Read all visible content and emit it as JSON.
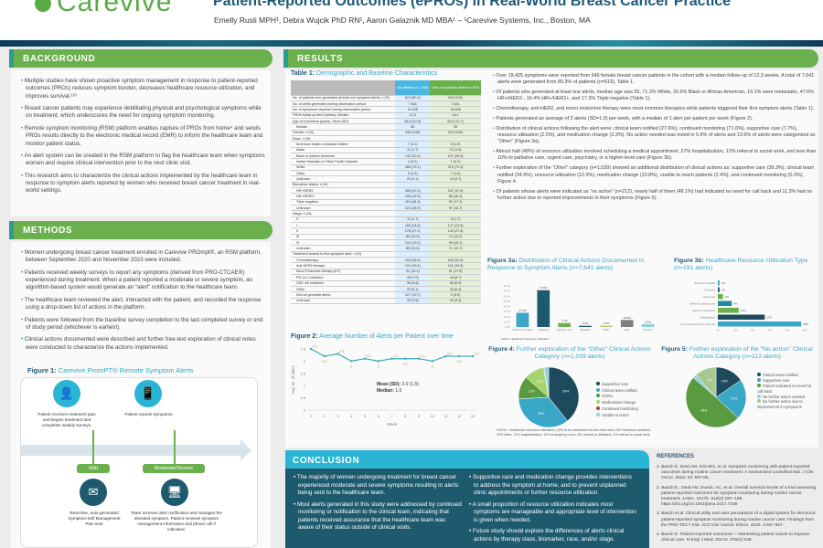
{
  "header": {
    "logo": "Carevive",
    "title": "Patient-Reported Outcomes (ePROs) in Real-World Breast Cancer Practice",
    "authors": "Emelly Rusli MPH¹, Debra Wujcik PhD RN¹, Aaron Galaznik MD MBA¹  –  ¹Carevive Systems, Inc., Boston, MA"
  },
  "background": {
    "heading": "BACKGROUND",
    "items": [
      "Multiple studies have shown proactive symptom management in response to patient-reported outcomes (PROs) reduces symptom burden, decreases healthcare resource utilization, and improves survival.¹²³",
      "Breast cancer patients may experience debilitating physical and psychological symptoms while on treatment, which underscores the need for ongoing symptom monitoring.",
      "Remote symptom monitoring (RSM) platform enables capture of PROs from home⁴ and sends PROs results directly to the electronic medical record (EMR) to inform the healthcare team and monitor patient status.",
      "An alert system can be created in the RSM platform to flag the healthcare team when symptoms worsen and require clinical intervention prior to the next clinic visit.",
      "This research aims to characterize the clinical actions implemented by the healthcare team in response to symptom alerts reported by women who received breast cancer treatment in real-world settings."
    ]
  },
  "methods": {
    "heading": "METHODS",
    "items": [
      "Women undergoing breast cancer treatment enrolled in Carevive PROmpt®, an RSM platform, between September 2020 and November 2023 were included.",
      "Patients received weekly surveys to report any symptoms (derived from PRO-CTCAE®) experienced during treatment. When a patient reported a moderate or severe symptom, an algorithm-based system would generate an “alert” notification to the healthcare team.",
      "The healthcare team reviewed the alert, interacted with the patient, and recorded the response using a drop-down list of actions in the platform.",
      "Patients were followed from the baseline survey completion to the last completed survey or end of study period (whichever is earliest).",
      "Clinical actions documented were described and further free-text exploration of clinical notes were conducted to characterize the actions implemented."
    ]
  },
  "figure1": {
    "label": "Figure 1:",
    "title": "Carevive PromPT® Remote Symptom Alerts",
    "step1": "Patient receives treatment plan and begins treatment and completes weekly surveys.",
    "step2": "Patient reports symptoms.",
    "mild": "Mild",
    "modsev": "Moderate/Severe",
    "mild_out": "Real-time, auto-generated Symptom-Self Management Plan sent",
    "modsev_out": "Team receives alert notification and manages the elevated symptom. Patient receives symptom management information and phone call if indicated."
  },
  "results": {
    "heading": "RESULTS",
    "items": [
      "Over 19,425 symptoms were reported from 646 female breast cancer patients in the cohort with a median follow-up of 12.3 weeks. A total of 7,641 alerts were generated from 80.3% of patients (n=519), Table 1.",
      "Of patients who generated at least one alerts, median age was 55, 71.3% White, 20.6% Black or African American, 19.1% were metastatic, 47.6% HR+/HER2-, 16.4% HR+/HER2+, and 17.3% Triple negative (Table 1).",
      "Chemotherapy, anti-HER2, and mono endocrine therapy were most common therapies while patients triggered their first symptom alerts (Table 1).",
      "Patients generated an average of 2 alerts (SD=1.5) per week, with a median of 1 alert per patient per week (Figure 2).",
      "Distribution of clinical actions following the alert were: clinical team notified (27.6%), continued monitoring (71.6%), supportive care (7.7%), resource utilization (2.5%), and medication change (2.3%). No action needed was noted in 5.6% of alerts and 13.6% of alerts were categorized as “Other” (Figure 3a).",
      "Almost half (48%) of resource utilization involved scheduling a medical appointment, 27% hospitalization, 12% referral to social work, and less than 10% to palliative care, urgent care, psychiatry, or a higher-level care (Figure 3b).",
      "Further exploration of the “Other” category (n=1,039) showed an additional distribution of clinical actions as: supportive care (39.3%), clinical team notified (34.9%), resource utilization (12.3%), medication change (10.8%), unable to reach patients (2.4%), and continued monitoring (0.3%), Figure 4.",
      "Of patients whose alerts were indicated as “no action” (n=212), nearly half of them (48.1%) had indicated no need for call back and 11.3% had no further action due to reported improvements in their symptoms (Figure 5)."
    ]
  },
  "table1": {
    "label": "Table 1:",
    "title": "Demographic and Baseline Characteristics",
    "col1": "All patients (n = 646)",
    "col2": "Had ≥1 symptom alerts (n=519)",
    "rows": [
      [
        "No. of patients who generated at least one symptom alerts, n (%)",
        "519 (80.3)",
        "519 (100)",
        0
      ],
      [
        "No. of alerts generated during observation period",
        "7,641",
        "7,641",
        0
      ],
      [
        "No. of symptoms reported during observation period",
        "19,425",
        "18,506",
        0
      ],
      [
        "PROs follow up time (weeks), Median",
        "12.3",
        "16.1",
        0
      ],
      [
        "Age at enrollment (years), Mean (SD)",
        "55.6 (12.6)",
        "54.8 (12.7)",
        0
      ],
      [
        "Median",
        "56",
        "55",
        1
      ],
      [
        "Female, n (%)",
        "646 (100)",
        "519 (100)",
        0
      ],
      [
        "Race, n (%)",
        "",
        "",
        0
      ],
      [
        "American Indian or Alaskan Native",
        "7 (1.1)",
        "5 (1.0)",
        1
      ],
      [
        "Asian",
        "11 (1.7)",
        "10 (1.9)",
        1
      ],
      [
        "Black or African American",
        "132 (20.4)",
        "107 (20.6)",
        1
      ],
      [
        "Native Hawaiian or Other Pacific Islander",
        "1 (0.2)",
        "1 (0.2)",
        1
      ],
      [
        "White",
        "466 (72.1)",
        "370 (71.3)",
        1
      ],
      [
        "Other",
        "9 (1.4)",
        "7 (1.3)",
        1
      ],
      [
        "Unknown",
        "20 (3.1)",
        "19 (3.7)",
        1
      ],
      [
        "Biomarker status, n (%)",
        "",
        "",
        0
      ],
      [
        "HR+/HER2-",
        "305 (47.2)",
        "247 (47.6)",
        1
      ],
      [
        "HR+/HER2+",
        "100 (15.5)",
        "85 (16.4)",
        1
      ],
      [
        "Triple negative",
        "119 (18.4)",
        "90 (17.3)",
        1
      ],
      [
        "Unknown",
        "122 (18.9)",
        "97 (18.7)",
        1
      ],
      [
        "Stage, n (%)",
        "",
        "",
        0
      ],
      [
        "0",
        "11 (1.7)",
        "9 (1.7)",
        1
      ],
      [
        "I",
        "160 (24.8)",
        "127 (24.5)",
        1
      ],
      [
        "II",
        "176 (27.2)",
        "143 (27.6)",
        1
      ],
      [
        "III",
        "86 (13.3)",
        "70 (13.5)",
        1
      ],
      [
        "IV",
        "124 (19.2)",
        "99 (19.1)",
        1
      ],
      [
        "Unknown",
        "89 (13.8)",
        "71 (13.7)",
        1
      ],
      [
        "Treatment closest to first symptom alert, n (%)",
        "",
        "",
        0
      ],
      [
        "Chemotherapy",
        "164 (25.4)",
        "164 (31.6)",
        1
      ],
      [
        "Anti-HER2 therapy",
        "101 (15.6)",
        "101 (19.5)",
        1
      ],
      [
        "Mono Endocrine therapy (ET)",
        "91 (14.1)",
        "91 (17.5)",
        1
      ],
      [
        "PD-1/L1 inhibitors",
        "45 (7.0)",
        "45 (8.7)",
        1
      ],
      [
        "CDK 4/6 inhibitors",
        "36 (5.6)",
        "36 (6.9)",
        1
      ],
      [
        "Other",
        "33 (5.1)",
        "33 (6.4)",
        1
      ],
      [
        "Did not generate alerts",
        "127 (19.7)",
        "0 (0.0)",
        1
      ],
      [
        "Unknown",
        "49 (7.6)",
        "49 (9.4)",
        1
      ]
    ]
  },
  "chart_data": [
    {
      "id": "fig2",
      "type": "line",
      "label": "Figure 2:",
      "title": "Average Number of Alerts per Patient over time",
      "xlabel": "Week",
      "ylabel": "Avg. no. of alerts",
      "x": [
        1,
        2,
        3,
        4,
        5,
        6,
        7,
        8,
        9,
        10,
        11,
        12,
        13
      ],
      "values": [
        2.5,
        2.2,
        2.3,
        2,
        2.1,
        2,
        2.1,
        2.1,
        2.1,
        2,
        2.2,
        2.2,
        2.2
      ],
      "ylim": [
        0,
        2.5
      ],
      "yticks": [
        "0",
        "0.5",
        "1",
        "1.5",
        "2",
        "2.5"
      ],
      "annotation": {
        "mean_label": "Mean (SD):",
        "mean": "2.0 (1.5)",
        "median_label": "Median:",
        "median": "1.0"
      },
      "color": "#3aa6b8"
    },
    {
      "id": "fig3a",
      "type": "bar",
      "label": "Figure 3a:",
      "title": "Distribution of Clinical Actions Documented in Response to Symptom Alerts (n=7,641 alerts)",
      "categories": [
        "Clinical team notified",
        "Monitoring",
        "Supportive Care",
        "Medication",
        "HCRU",
        "Other",
        "No action"
      ],
      "values": [
        27.6,
        71.6,
        7.7,
        2.3,
        2.5,
        13.6,
        5.6
      ],
      "colors": [
        "#3aa6c8",
        "#1e5a6e",
        "#6ab04c",
        "#1e5a6e",
        "#a8d46f",
        "#7f7f7f",
        "#8fd0e0"
      ],
      "ylim": [
        0,
        80
      ],
      "yticks": [
        "0.0%",
        "10.0%",
        "20.0%",
        "30.0%",
        "40.0%",
        "50.0%",
        "60.0%",
        "70.0%",
        "80.0%"
      ],
      "note": "HCRU: Healthcare Resource Utilization"
    },
    {
      "id": "fig3b",
      "type": "bar",
      "orientation": "horizontal",
      "label": "Figure 3b:",
      "title": "Healthcare Resource Utilization Type (n=191 alerts)",
      "categories": [
        "Referral to specialist",
        "Psychiatry",
        "Urgent care",
        "Referral to palliative care",
        "Referral to social work",
        "Hospitalization",
        "To be addressed at next clinic visit"
      ],
      "values": [
        1,
        1,
        3,
        8,
        12,
        27,
        48
      ],
      "colors": [
        "#3aa6c8",
        "#1e5a6e",
        "#6ab04c",
        "#1e8a9a",
        "#6ab04c",
        "#1e4a5e",
        "#3aa6c8"
      ],
      "xlim": [
        0,
        50
      ],
      "xticks": [
        "0%",
        "10%",
        "20%",
        "30%",
        "40%",
        "50%"
      ]
    },
    {
      "id": "fig4",
      "type": "pie",
      "label": "Figure 4:",
      "title": "Further exploration of the “Other” Clinical Actions Category (n=1,039 alerts)",
      "categories": [
        "Supportive care",
        "Clinical team notified",
        "HCRU",
        "Medications change",
        "Continued monitoring",
        "Unable to reach"
      ],
      "values": [
        39.3,
        34.9,
        12.3,
        10.8,
        0.3,
        2.4
      ],
      "colors": [
        "#1e4a5e",
        "#3aa6c8",
        "#5a9a40",
        "#a8d46f",
        "#c0392b",
        "#8fd0e0"
      ],
      "note": "HCRU = Healthcare resource utilization | 42% to be addressed at next clinic visit; 15% referral to radiation; 13% other; 13% hospitalization; 10% emergency room; 8% referral to dietitians; 2% referral to social work"
    },
    {
      "id": "fig5",
      "type": "pie",
      "label": "Figure 5:",
      "title": "Further exploration of the “No action” Clinical Actions Category (n=212 alerts)",
      "categories": [
        "Clinical team notified",
        "Supportive care",
        "Patient indicated no need for call back",
        "No further action needed",
        "No further action due to improvement in symptoms"
      ],
      "values": [
        15,
        21,
        48.1,
        2,
        11.3
      ],
      "colors": [
        "#1e4a5e",
        "#3aa6c8",
        "#5a9a40",
        "#8fd0e0",
        "#a8c890"
      ]
    }
  ],
  "conclusion": {
    "heading": "CONCLUSION",
    "left": [
      "The majority of women undergoing treatment for breast cancer experienced moderate and severe symptoms resulting in alerts being sent to the healthcare team.",
      "Most alerts generated in this study were addressed by continued monitoring or notification to the clinical team, indicating that patients received assurance that the healthcare team was aware of their status outside of clinical visits."
    ],
    "right": [
      "Supportive care and medication change provides interventions to address the symptom at home, and to prevent unplanned clinic appointments or further resource utilization.",
      "A small proportion of resource utilization indicates most symptoms are manageable and appropriate level of intervention is given when needed.",
      "Future study should explore the differences of alerts clinical actions by therapy class, biomarker, race, and/or stage."
    ]
  },
  "references": {
    "heading": "REFERENCES",
    "items": [
      "1. Basch E, Deal AM, Kris MG, et al. Symptom monitoring with patient-reported outcomes during routine cancer treatment: A randomized controlled trial. J Clin Oncol. 2016; 34: 557-65.",
      "2. Basch E., Deal AM, Dueck, AC, et al. Overall survival results of a trial assessing patient-reported outcomes for symptom monitoring during routine cancer treatment. JAMA. 2017b. 318(2):197–198. https://doi.org/10.1001/jama.2017.7156",
      "3. Basch et al. Clinical utility and user perceptions of a digital system for electronic patient-reported symptom monitoring during routine cancer care: Findings from the PRO-TECT trial. JCO Clin Cancer Inform. 2020. 4:947-957.",
      "4. Basch E. Patient-reported outcomes— Harnessing patient voices to improve clinical care. N Engl J Med. 2017a. 376(2):105-"
    ]
  }
}
